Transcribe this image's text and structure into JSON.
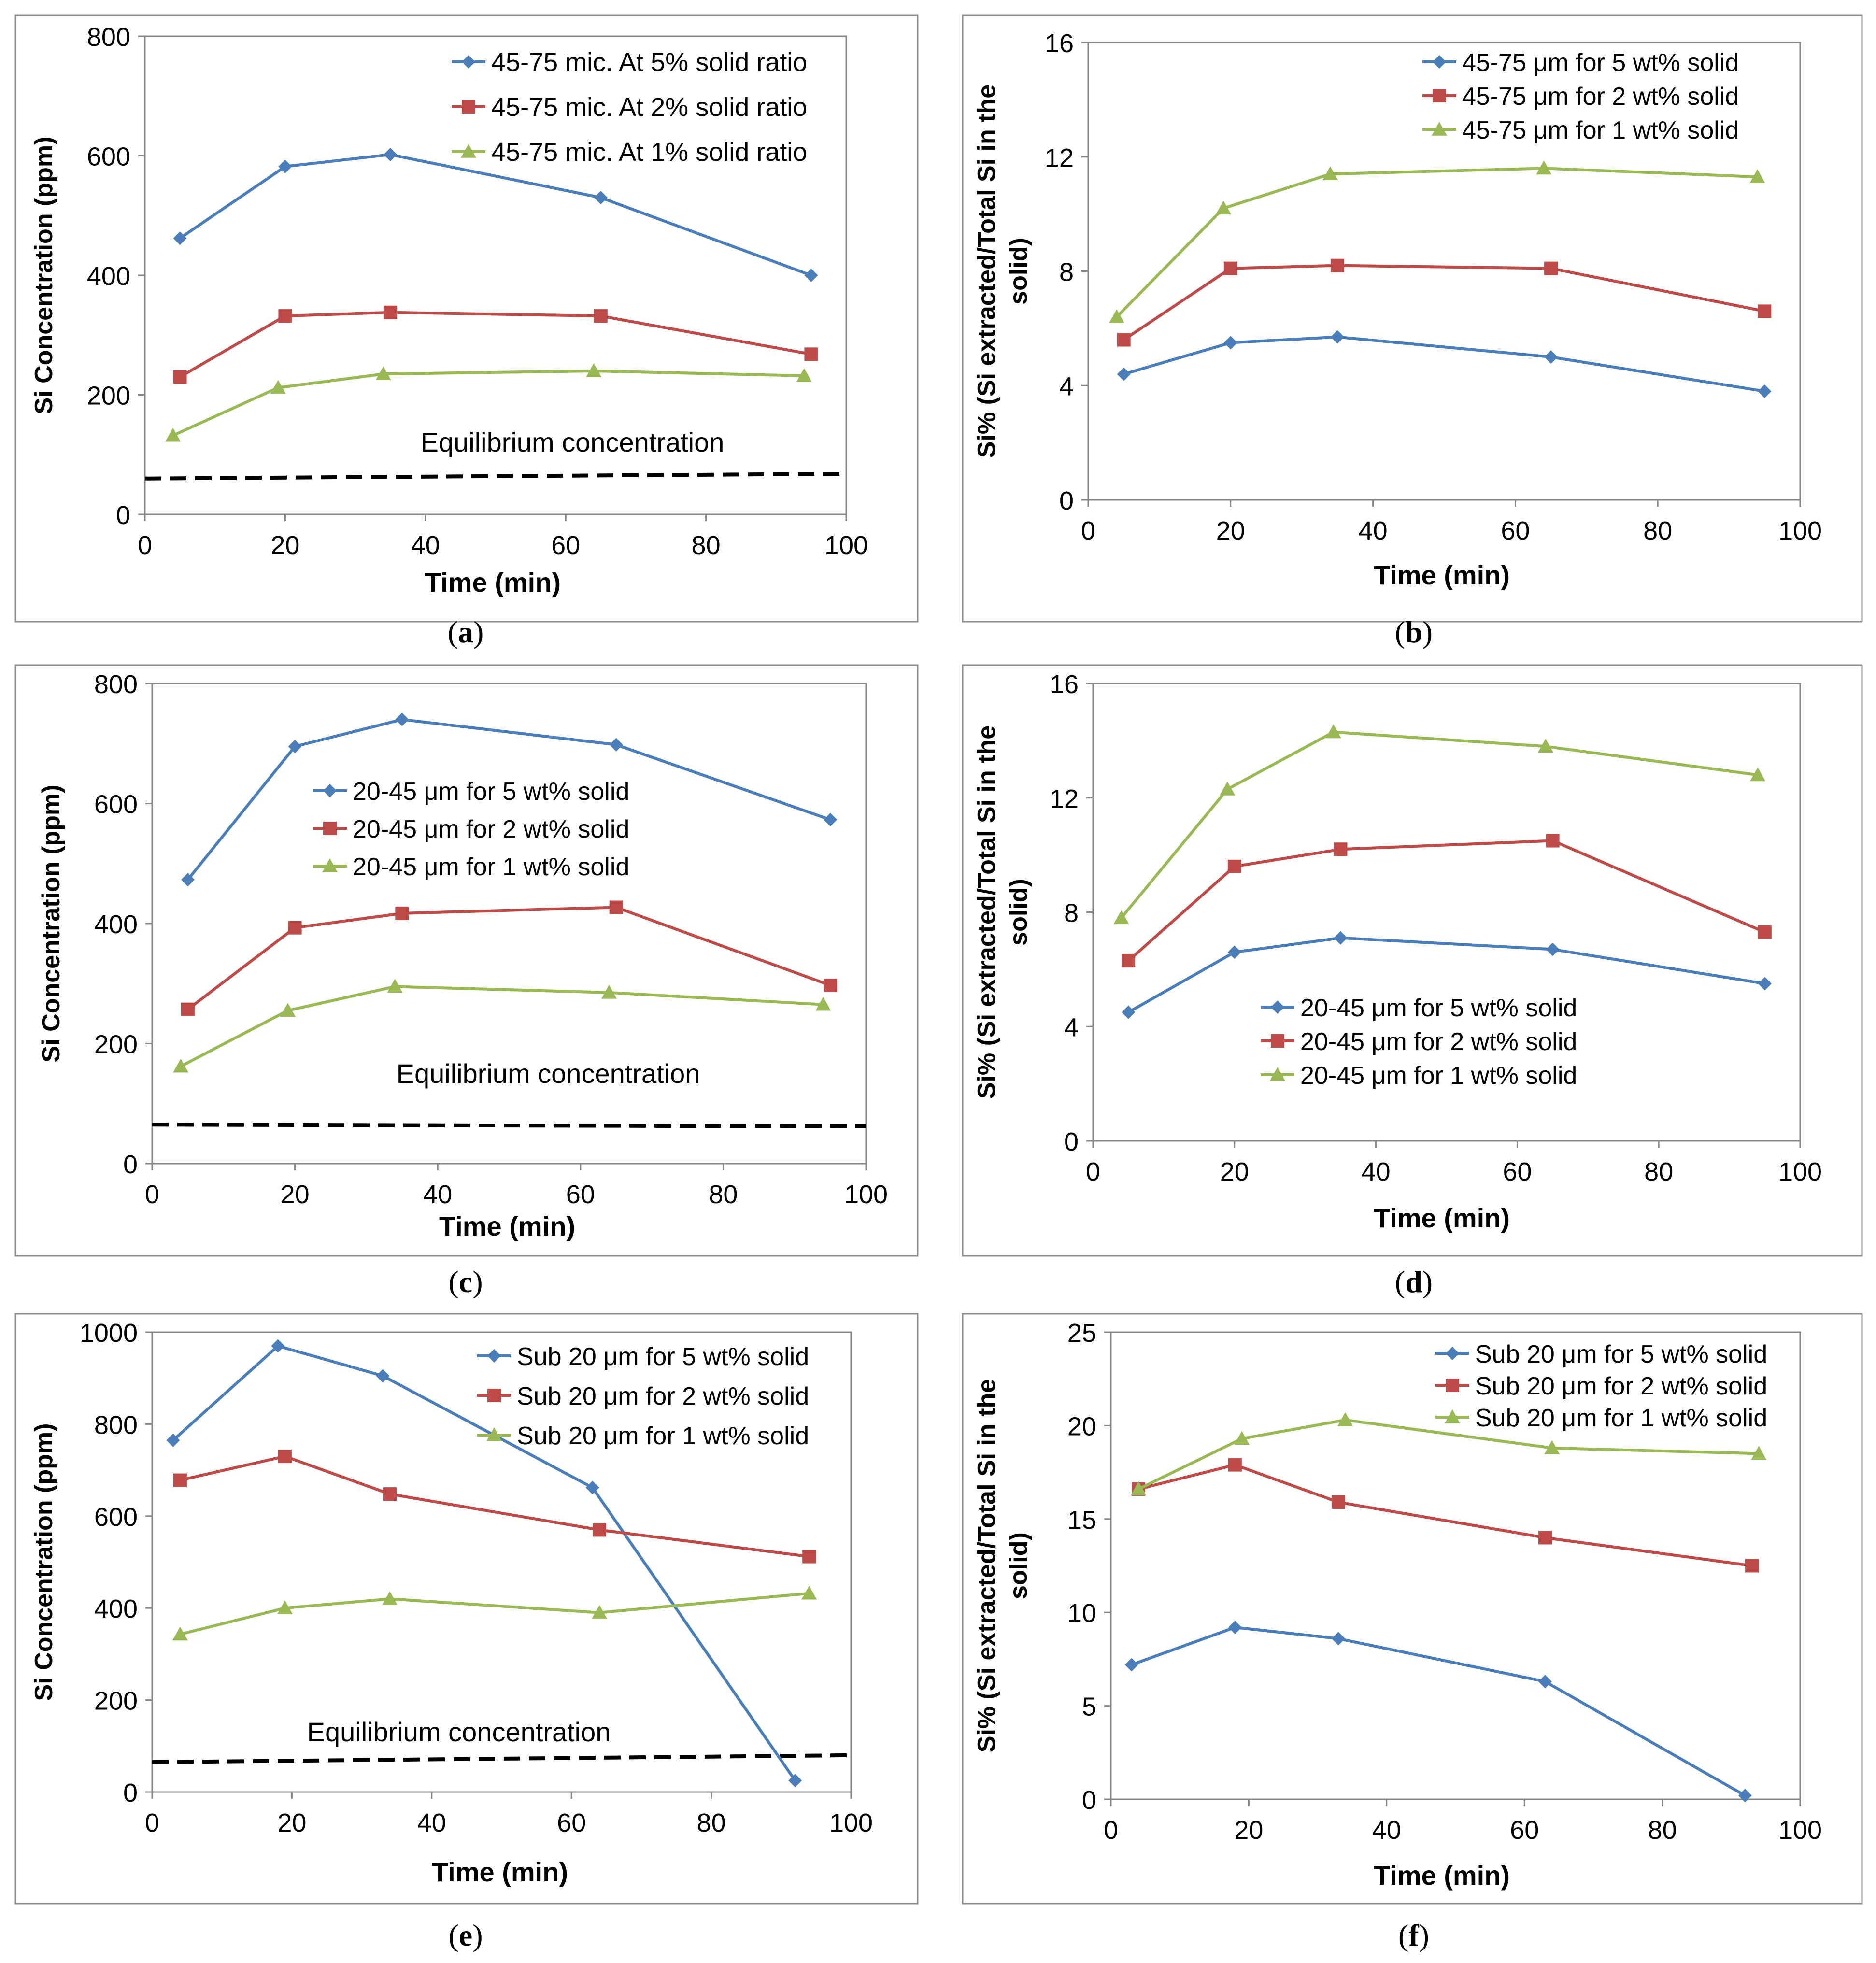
{
  "figure_title": "",
  "colors": {
    "blue": "#4a7ebb",
    "red": "#be4b48",
    "green": "#98b954",
    "frame": "#8c8c8c",
    "axis": "#868686",
    "text": "#000000"
  },
  "chart_data": [
    {
      "id": "a",
      "caption": "a",
      "type": "line",
      "title": "",
      "xlabel": "Time (min)",
      "ylabel": "Si Concentration (ppm)",
      "xlim": [
        0,
        100
      ],
      "ylim": [
        0,
        800
      ],
      "xticks": [
        0,
        20,
        40,
        60,
        80,
        100
      ],
      "yticks": [
        0,
        200,
        400,
        600,
        800
      ],
      "legend_position": "top-right",
      "series": [
        {
          "name": "45-75 mic. At 5% solid ratio",
          "marker": "diamond",
          "color": "blue",
          "x": [
            5,
            20,
            35,
            65,
            95
          ],
          "y": [
            462,
            582,
            602,
            530,
            400
          ]
        },
        {
          "name": "45-75 mic. At 2% solid ratio",
          "marker": "square",
          "color": "red",
          "x": [
            5,
            20,
            35,
            65,
            95
          ],
          "y": [
            230,
            332,
            338,
            332,
            268
          ]
        },
        {
          "name": "45-75 mic. At 1% solid ratio",
          "marker": "triangle",
          "color": "green",
          "x": [
            4,
            19,
            34,
            64,
            94
          ],
          "y": [
            132,
            212,
            235,
            240,
            232
          ]
        }
      ],
      "equilibrium": {
        "label": "Equilibrium concentration",
        "x": [
          0,
          100
        ],
        "y": [
          60,
          68
        ]
      }
    },
    {
      "id": "b",
      "caption": "b",
      "type": "line",
      "title": "",
      "xlabel": "Time (min)",
      "ylabel": "Si% (Si extracted/Total Si in the solid)",
      "xlim": [
        0,
        100
      ],
      "ylim": [
        0,
        16
      ],
      "xticks": [
        0,
        20,
        40,
        60,
        80,
        100
      ],
      "yticks": [
        0,
        4,
        8,
        12,
        16
      ],
      "legend_position": "top-right",
      "series": [
        {
          "name": "45-75 μm for 5 wt% solid",
          "marker": "diamond",
          "color": "blue",
          "x": [
            5,
            20,
            35,
            65,
            95
          ],
          "y": [
            4.4,
            5.5,
            5.7,
            5.0,
            3.8
          ]
        },
        {
          "name": "45-75 μm for 2 wt% solid",
          "marker": "square",
          "color": "red",
          "x": [
            5,
            20,
            35,
            65,
            95
          ],
          "y": [
            5.6,
            8.1,
            8.2,
            8.1,
            6.6
          ]
        },
        {
          "name": "45-75 μm for 1 wt% solid",
          "marker": "triangle",
          "color": "green",
          "x": [
            4,
            19,
            34,
            64,
            94
          ],
          "y": [
            6.4,
            10.2,
            11.4,
            11.6,
            11.3
          ]
        }
      ]
    },
    {
      "id": "c",
      "caption": "c",
      "type": "line",
      "title": "",
      "xlabel": "Time (min)",
      "ylabel": "Si Concentration (ppm)",
      "xlim": [
        0,
        100
      ],
      "ylim": [
        0,
        800
      ],
      "xticks": [
        0,
        20,
        40,
        60,
        80,
        100
      ],
      "yticks": [
        0,
        200,
        400,
        600,
        800
      ],
      "legend_position": "center",
      "series": [
        {
          "name": "20-45 μm for 5 wt% solid",
          "marker": "diamond",
          "color": "blue",
          "x": [
            5,
            20,
            35,
            65,
            95
          ],
          "y": [
            473,
            695,
            740,
            698,
            573
          ]
        },
        {
          "name": "20-45 μm for 2 wt% solid",
          "marker": "square",
          "color": "red",
          "x": [
            5,
            20,
            35,
            65,
            95
          ],
          "y": [
            257,
            393,
            417,
            427,
            297
          ]
        },
        {
          "name": "20-45 μm for 1 wt% solid",
          "marker": "triangle",
          "color": "green",
          "x": [
            4,
            19,
            34,
            64,
            94
          ],
          "y": [
            162,
            255,
            295,
            285,
            265
          ]
        }
      ],
      "equilibrium": {
        "label": "Equilibrium concentration",
        "x": [
          0,
          100
        ],
        "y": [
          65,
          62
        ]
      }
    },
    {
      "id": "d",
      "caption": "d",
      "type": "line",
      "title": "",
      "xlabel": "Time (min)",
      "ylabel": "Si% (Si extracted/Total Si in the solid)",
      "xlim": [
        0,
        100
      ],
      "ylim": [
        0,
        16
      ],
      "xticks": [
        0,
        20,
        40,
        60,
        80,
        100
      ],
      "yticks": [
        0,
        4,
        8,
        12,
        16
      ],
      "legend_position": "bottom-center",
      "series": [
        {
          "name": "20-45 μm for 5 wt% solid",
          "marker": "diamond",
          "color": "blue",
          "x": [
            5,
            20,
            35,
            65,
            95
          ],
          "y": [
            4.5,
            6.6,
            7.1,
            6.7,
            5.5
          ]
        },
        {
          "name": "20-45 μm for 2 wt% solid",
          "marker": "square",
          "color": "red",
          "x": [
            5,
            20,
            35,
            65,
            95
          ],
          "y": [
            6.3,
            9.6,
            10.2,
            10.5,
            7.3
          ]
        },
        {
          "name": "20-45 μm for 1 wt% solid",
          "marker": "triangle",
          "color": "green",
          "x": [
            4,
            19,
            34,
            64,
            94
          ],
          "y": [
            7.8,
            12.3,
            14.3,
            13.8,
            12.8
          ]
        }
      ]
    },
    {
      "id": "e",
      "caption": "e",
      "type": "line",
      "title": "",
      "xlabel": "Time (min)",
      "ylabel": "Si Concentration (ppm)",
      "xlim": [
        0,
        100
      ],
      "ylim": [
        0,
        1000
      ],
      "xticks": [
        0,
        20,
        40,
        60,
        80,
        100
      ],
      "yticks": [
        0,
        200,
        400,
        600,
        800,
        1000
      ],
      "legend_position": "top-right",
      "series": [
        {
          "name": "Sub 20 μm for 5 wt% solid",
          "marker": "diamond",
          "color": "blue",
          "x": [
            3,
            18,
            33,
            63,
            92
          ],
          "y": [
            765,
            970,
            905,
            662,
            25
          ]
        },
        {
          "name": "Sub 20 μm for 2 wt% solid",
          "marker": "square",
          "color": "red",
          "x": [
            4,
            19,
            34,
            64,
            94
          ],
          "y": [
            678,
            730,
            648,
            570,
            512
          ]
        },
        {
          "name": "Sub 20 μm for 1 wt% solid",
          "marker": "triangle",
          "color": "green",
          "x": [
            4,
            19,
            34,
            64,
            94
          ],
          "y": [
            343,
            400,
            420,
            390,
            432
          ]
        }
      ],
      "equilibrium": {
        "label": "Equilibrium concentration",
        "x": [
          0,
          100
        ],
        "y": [
          65,
          80
        ]
      }
    },
    {
      "id": "f",
      "caption": "f",
      "type": "line",
      "title": "",
      "xlabel": "Time (min)",
      "ylabel": "Si% (Si extracted/Total Si in the solid)",
      "xlim": [
        0,
        100
      ],
      "ylim": [
        0,
        25
      ],
      "xticks": [
        0,
        20,
        40,
        60,
        80,
        100
      ],
      "yticks": [
        0,
        5,
        10,
        15,
        20,
        25
      ],
      "legend_position": "top-right",
      "series": [
        {
          "name": "Sub 20 μm for 5 wt% solid",
          "marker": "diamond",
          "color": "blue",
          "x": [
            3,
            18,
            33,
            63,
            92
          ],
          "y": [
            7.2,
            9.2,
            8.6,
            6.3,
            0.2
          ]
        },
        {
          "name": "Sub 20 μm for 2 wt% solid",
          "marker": "square",
          "color": "red",
          "x": [
            4,
            18,
            33,
            63,
            93
          ],
          "y": [
            16.6,
            17.9,
            15.9,
            14.0,
            12.5
          ]
        },
        {
          "name": "Sub 20 μm for 1 wt% solid",
          "marker": "triangle",
          "color": "green",
          "x": [
            4,
            19,
            34,
            64,
            94
          ],
          "y": [
            16.6,
            19.3,
            20.3,
            18.8,
            18.5
          ]
        }
      ]
    }
  ]
}
